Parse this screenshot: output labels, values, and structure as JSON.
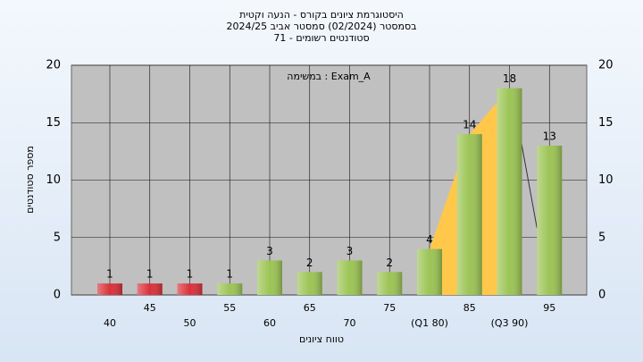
{
  "chart_data": {
    "type": "bar",
    "title": [
      "היסטוגרמת ציונים בקורס - הנעה וקטית",
      "בסמסטר  (02/2024)  סמסטר אביב 2024/25",
      "סטודנטים רשומים - 71"
    ],
    "annotation": "במשימה : Exam_A",
    "y_label": "מספר סטודנטים",
    "x_label": "טווח ציונים",
    "categories": [
      "40",
      "45",
      "50",
      "55",
      "60",
      "65",
      "70",
      "75",
      "(Q1 80)",
      "85",
      "(Q3 90)",
      "95"
    ],
    "values": [
      1,
      1,
      1,
      1,
      3,
      2,
      3,
      2,
      4,
      14,
      18,
      13
    ],
    "colors": [
      "#d8323a",
      "#d8323a",
      "#d8323a",
      "#9cc455",
      "#9cc455",
      "#9cc455",
      "#9cc455",
      "#9cc455",
      "#9cc455",
      "#9cc455",
      "#9cc455",
      "#9cc455"
    ],
    "area_color": "#ffc84a",
    "ylim": [
      0,
      20
    ],
    "yticks": [
      0,
      5,
      10,
      15,
      20
    ],
    "y2lim": [
      0,
      20
    ],
    "y2ticks": [
      0,
      5,
      10,
      15,
      20
    ],
    "grid": true
  }
}
